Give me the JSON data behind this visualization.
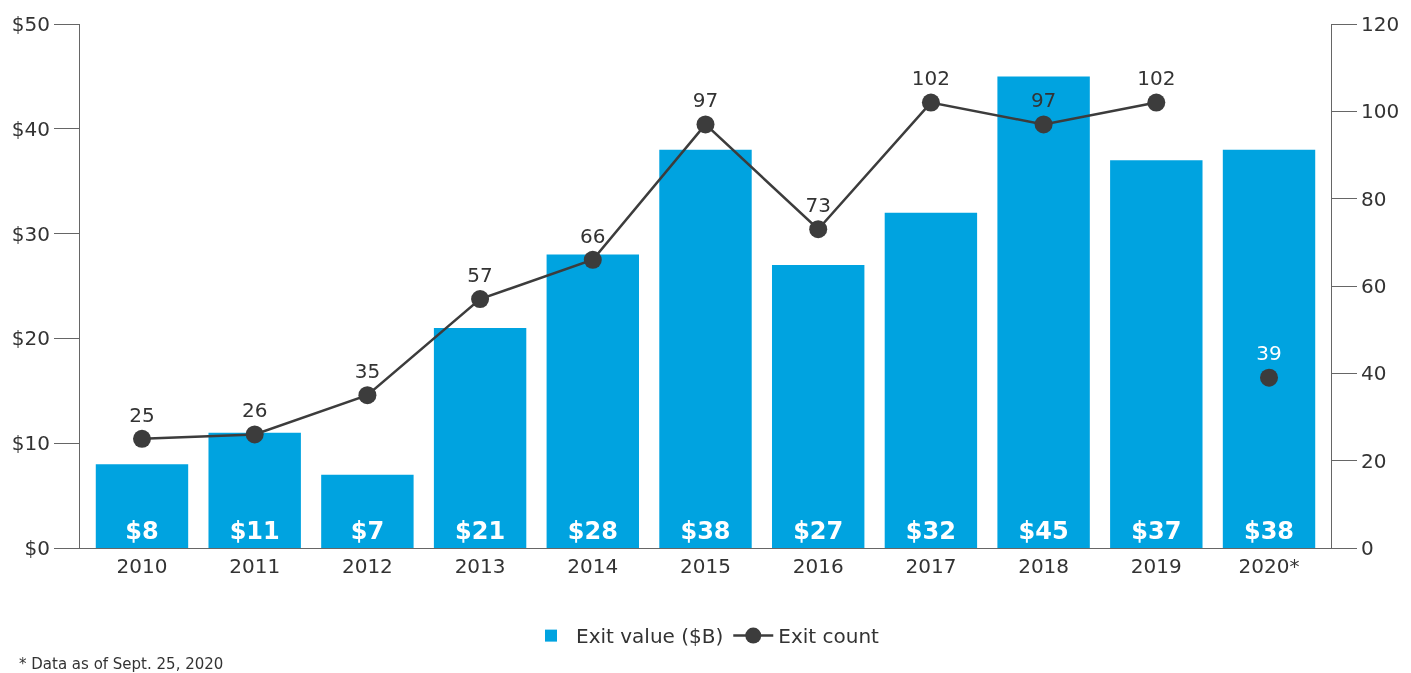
{
  "chart_data": {
    "type": "bar",
    "categories": [
      "2010",
      "2011",
      "2012",
      "2013",
      "2014",
      "2015",
      "2016",
      "2017",
      "2018",
      "2019",
      "2020*"
    ],
    "series": [
      {
        "name": "Exit value ($B)",
        "color": "#00a3e0",
        "values": [
          8,
          11,
          7,
          21,
          28,
          38,
          27,
          32,
          45,
          37,
          38
        ],
        "value_labels": [
          "$8",
          "$11",
          "$7",
          "$21",
          "$28",
          "$38",
          "$27",
          "$32",
          "$45",
          "$37",
          "$38"
        ]
      },
      {
        "name": "Exit count",
        "type": "line",
        "axis": "y2",
        "color": "#3c3c3c",
        "values": [
          25,
          26,
          35,
          57,
          66,
          97,
          73,
          102,
          97,
          102,
          null
        ],
        "value_labels": [
          "25",
          "26",
          "35",
          "57",
          "66",
          "97",
          "73",
          "102",
          "97",
          "102",
          null
        ]
      },
      {
        "type": "scatter",
        "axis": "y2",
        "color": "#3c3c3c",
        "values": [
          null,
          null,
          null,
          null,
          null,
          null,
          null,
          null,
          null,
          null,
          39
        ],
        "value_labels": [
          null,
          null,
          null,
          null,
          null,
          null,
          null,
          null,
          null,
          null,
          "39"
        ]
      }
    ],
    "ylim": [
      0,
      50
    ],
    "yticks": [
      {
        "value": 0,
        "label": "$0"
      },
      {
        "value": 10,
        "label": "$10"
      },
      {
        "value": 20,
        "label": "$20"
      },
      {
        "value": 30,
        "label": "$30"
      },
      {
        "value": 40,
        "label": "$40"
      },
      {
        "value": 50,
        "label": "$50"
      }
    ],
    "y2lim": [
      0,
      120
    ],
    "y2ticks": [
      0,
      20,
      40,
      60,
      80,
      100,
      120
    ],
    "grid": false,
    "legend": "bottom",
    "marker": "circle",
    "line_style": "solid",
    "annotations": [
      "* Data as of Sept. 25, 2020"
    ]
  }
}
